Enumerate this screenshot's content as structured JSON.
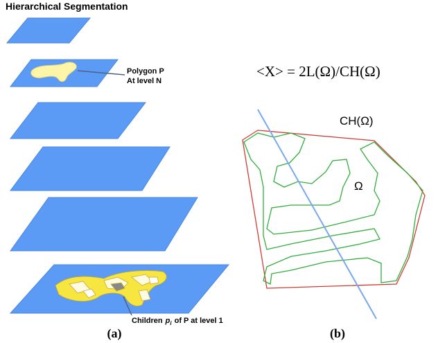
{
  "title": "Hierarchical Segmentation",
  "polygon_label": [
    "Polygon P",
    "At level N"
  ],
  "children_label": {
    "prefix": "Children",
    "var": "p",
    "sub": "i",
    "suffix": "of P at level 1"
  },
  "formula": "<X> = 2L(Ω)/CH(Ω)",
  "hull_label": "CH(Ω)",
  "region_label": "Ω",
  "captions": [
    "(a)",
    "(b)"
  ]
}
